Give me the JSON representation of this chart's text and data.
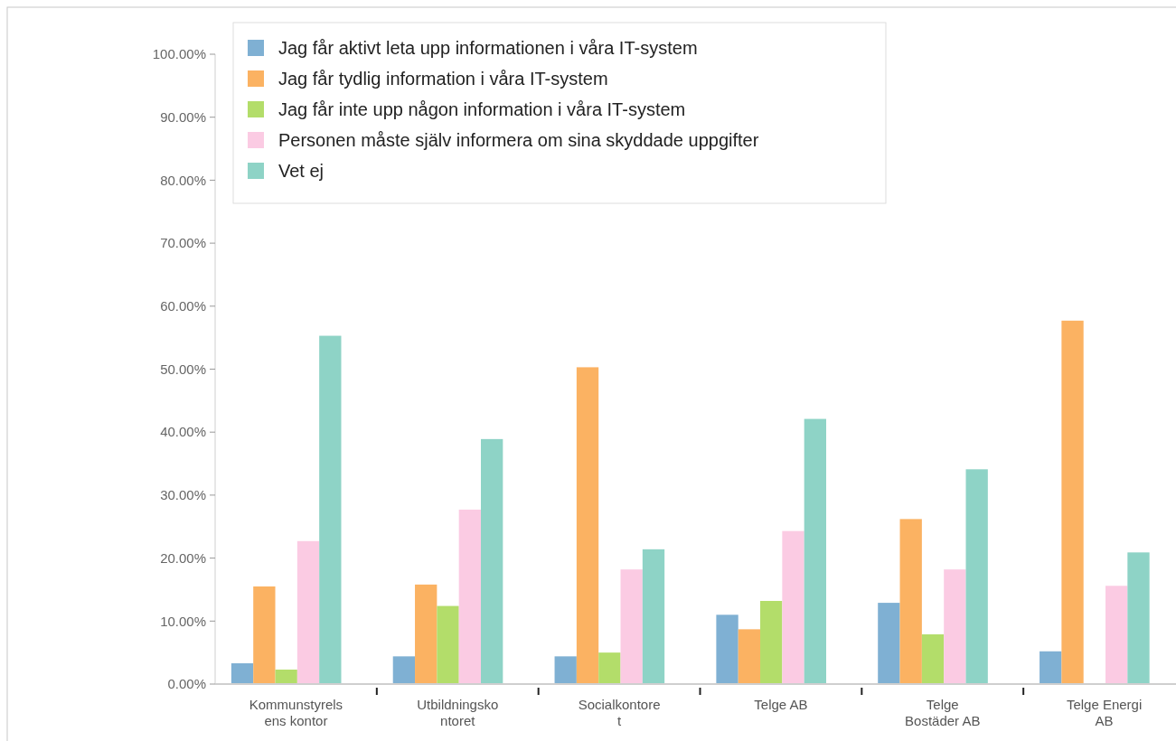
{
  "chart_data": {
    "type": "bar",
    "categories": [
      "Kommunstyrelsens kontor",
      "Utbildningskontoret",
      "Socialkontoret",
      "Telge AB",
      "Telge Bostäder AB",
      "Telge Energi AB"
    ],
    "series": [
      {
        "name": "Jag får aktivt leta upp informationen i våra IT-system",
        "color": "#7fb0d3",
        "values": [
          3.3,
          4.4,
          4.4,
          11.0,
          12.9,
          5.2
        ]
      },
      {
        "name": "Jag får tydlig information i våra IT-system",
        "color": "#fbb262",
        "values": [
          15.5,
          15.8,
          50.3,
          8.7,
          26.2,
          57.7
        ]
      },
      {
        "name": "Jag får inte upp någon information i våra IT-system",
        "color": "#b3dd6a",
        "values": [
          2.3,
          12.4,
          5.0,
          13.2,
          7.9,
          0
        ]
      },
      {
        "name": "Personen måste själv informera om sina skyddade uppgifter",
        "color": "#fbcbe3",
        "values": [
          22.7,
          27.7,
          18.2,
          24.3,
          18.2,
          15.6
        ]
      },
      {
        "name": "Vet ej",
        "color": "#8ed3c6",
        "values": [
          55.3,
          38.9,
          21.4,
          42.1,
          34.1,
          20.9
        ]
      }
    ],
    "ylim": [
      0,
      100
    ],
    "yticks": [
      {
        "value": 0,
        "label": "0.00%"
      },
      {
        "value": 10,
        "label": "10.00%"
      },
      {
        "value": 20,
        "label": "20.00%"
      },
      {
        "value": 30,
        "label": "30.00%"
      },
      {
        "value": 40,
        "label": "40.00%"
      },
      {
        "value": 50,
        "label": "50.00%"
      },
      {
        "value": 60,
        "label": "60.00%"
      },
      {
        "value": 70,
        "label": "70.00%"
      },
      {
        "value": 80,
        "label": "80.00%"
      },
      {
        "value": 90,
        "label": "90.00%"
      },
      {
        "value": 100,
        "label": "100.00%"
      }
    ],
    "grid": false,
    "legend": "top left"
  }
}
